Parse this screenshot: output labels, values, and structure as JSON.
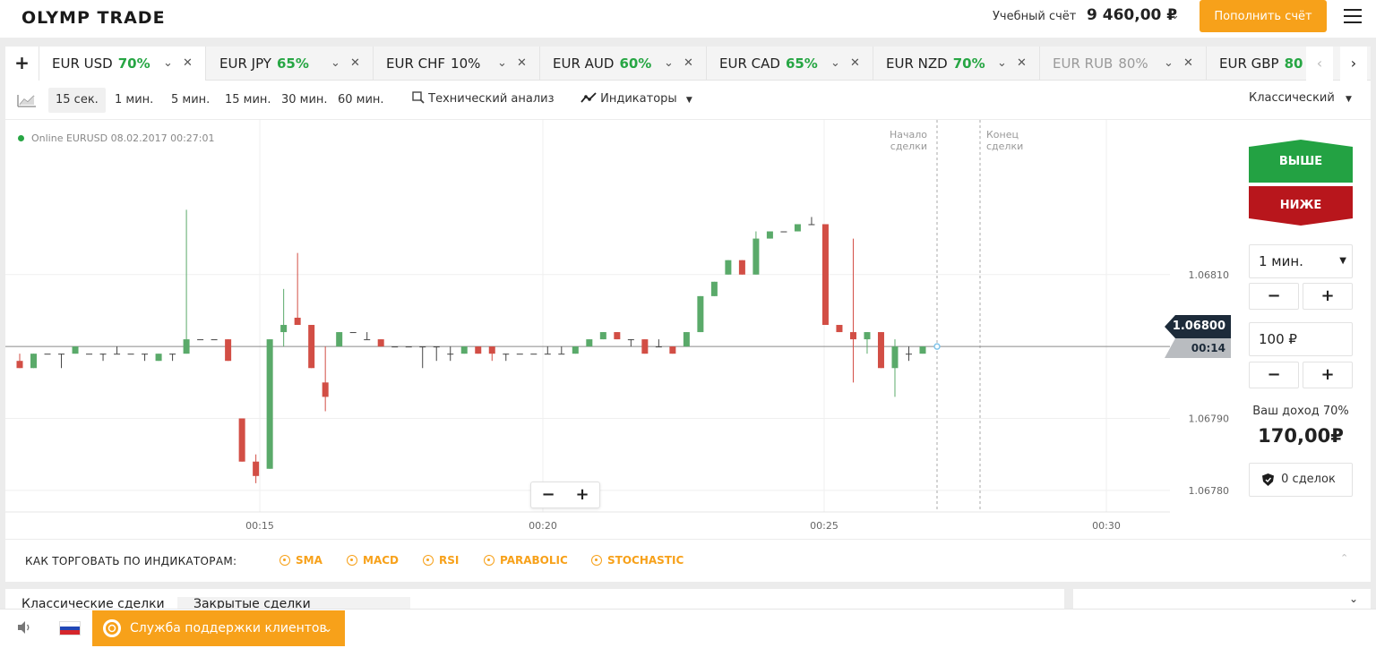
{
  "header": {
    "logo": "OLYMP TRADE",
    "account_label": "Учебный счёт",
    "balance": "9 460,00 ₽",
    "deposit_button": "Пополнить счёт"
  },
  "tabs": [
    {
      "pair": "EUR USD",
      "pct": "70%",
      "active": true
    },
    {
      "pair": "EUR JPY",
      "pct": "65%"
    },
    {
      "pair": "EUR CHF",
      "pct": "10%"
    },
    {
      "pair": "EUR AUD",
      "pct": "60%"
    },
    {
      "pair": "EUR CAD",
      "pct": "65%"
    },
    {
      "pair": "EUR NZD",
      "pct": "70%"
    },
    {
      "pair": "EUR RUB",
      "pct": "80%",
      "disabled": true
    },
    {
      "pair": "EUR GBP",
      "pct": "80"
    }
  ],
  "toolbar": {
    "timeframes": [
      "15 сек.",
      "1 мин.",
      "5 мин.",
      "15 мин.",
      "30 мин.",
      "60 мин."
    ],
    "selected_timeframe": "15 сек.",
    "tech_analysis": "Технический анализ",
    "indicators": "Индикаторы",
    "chart_style": "Классический"
  },
  "chart": {
    "online_label": "Online EURUSD 08.02.2017 00:27:01",
    "deal_start": [
      "Начало",
      "сделки"
    ],
    "deal_end": [
      "Конец",
      "сделки"
    ],
    "current_price": "1.06800",
    "timer": "00:14"
  },
  "chart_data": {
    "type": "candlestick",
    "x_ticks": [
      "00:15",
      "00:20",
      "00:25",
      "00:30"
    ],
    "y_ticks": [
      "1.06810",
      "1.06790",
      "1.06780"
    ],
    "ylim": [
      1.06777,
      1.0683
    ],
    "candles": [
      {
        "o": 1.06798,
        "c": 1.06797,
        "h": 1.06799,
        "l": 1.06797
      },
      {
        "o": 1.06797,
        "c": 1.06799,
        "h": 1.06799,
        "l": 1.06797
      },
      {
        "o": 1.06799,
        "c": 1.06799,
        "h": 1.06799,
        "l": 1.06799
      },
      {
        "o": 1.06799,
        "c": 1.06799,
        "h": 1.06799,
        "l": 1.06797
      },
      {
        "o": 1.06799,
        "c": 1.068,
        "h": 1.068,
        "l": 1.06799
      },
      {
        "o": 1.06799,
        "c": 1.06799,
        "h": 1.06799,
        "l": 1.06799
      },
      {
        "o": 1.06799,
        "c": 1.06799,
        "h": 1.06799,
        "l": 1.06798
      },
      {
        "o": 1.06799,
        "c": 1.06799,
        "h": 1.068,
        "l": 1.06799
      },
      {
        "o": 1.06799,
        "c": 1.06799,
        "h": 1.06799,
        "l": 1.06799
      },
      {
        "o": 1.06799,
        "c": 1.06799,
        "h": 1.06799,
        "l": 1.06798
      },
      {
        "o": 1.06798,
        "c": 1.06799,
        "h": 1.06799,
        "l": 1.06798
      },
      {
        "o": 1.06799,
        "c": 1.06799,
        "h": 1.06799,
        "l": 1.06798
      },
      {
        "o": 1.06799,
        "c": 1.06801,
        "h": 1.06819,
        "l": 1.06799
      },
      {
        "o": 1.06801,
        "c": 1.06801,
        "h": 1.06801,
        "l": 1.06801
      },
      {
        "o": 1.06801,
        "c": 1.06801,
        "h": 1.06801,
        "l": 1.06801
      },
      {
        "o": 1.06801,
        "c": 1.06798,
        "h": 1.06801,
        "l": 1.06798
      },
      {
        "o": 1.0679,
        "c": 1.06784,
        "h": 1.0679,
        "l": 1.06784
      },
      {
        "o": 1.06784,
        "c": 1.06782,
        "h": 1.06785,
        "l": 1.06781
      },
      {
        "o": 1.06783,
        "c": 1.06801,
        "h": 1.06801,
        "l": 1.06783
      },
      {
        "o": 1.06802,
        "c": 1.06803,
        "h": 1.06808,
        "l": 1.068
      },
      {
        "o": 1.06804,
        "c": 1.06803,
        "h": 1.06813,
        "l": 1.06803
      },
      {
        "o": 1.06803,
        "c": 1.06797,
        "h": 1.06803,
        "l": 1.06797
      },
      {
        "o": 1.06795,
        "c": 1.06793,
        "h": 1.068,
        "l": 1.06791
      },
      {
        "o": 1.068,
        "c": 1.06802,
        "h": 1.06802,
        "l": 1.068
      },
      {
        "o": 1.06802,
        "c": 1.06802,
        "h": 1.06802,
        "l": 1.06802
      },
      {
        "o": 1.06801,
        "c": 1.06801,
        "h": 1.06802,
        "l": 1.06801
      },
      {
        "o": 1.06801,
        "c": 1.068,
        "h": 1.06801,
        "l": 1.068
      },
      {
        "o": 1.068,
        "c": 1.068,
        "h": 1.068,
        "l": 1.068
      },
      {
        "o": 1.068,
        "c": 1.068,
        "h": 1.068,
        "l": 1.068
      },
      {
        "o": 1.068,
        "c": 1.068,
        "h": 1.068,
        "l": 1.06797
      },
      {
        "o": 1.068,
        "c": 1.068,
        "h": 1.068,
        "l": 1.06798
      },
      {
        "o": 1.06799,
        "c": 1.06799,
        "h": 1.068,
        "l": 1.06798
      },
      {
        "o": 1.06799,
        "c": 1.068,
        "h": 1.068,
        "l": 1.06799
      },
      {
        "o": 1.068,
        "c": 1.06799,
        "h": 1.068,
        "l": 1.06799
      },
      {
        "o": 1.068,
        "c": 1.06799,
        "h": 1.068,
        "l": 1.06798
      },
      {
        "o": 1.06799,
        "c": 1.06799,
        "h": 1.06799,
        "l": 1.06798
      },
      {
        "o": 1.06799,
        "c": 1.06799,
        "h": 1.06799,
        "l": 1.06799
      },
      {
        "o": 1.06799,
        "c": 1.06799,
        "h": 1.06799,
        "l": 1.06799
      },
      {
        "o": 1.06799,
        "c": 1.06799,
        "h": 1.068,
        "l": 1.06799
      },
      {
        "o": 1.06799,
        "c": 1.06799,
        "h": 1.068,
        "l": 1.06799
      },
      {
        "o": 1.06799,
        "c": 1.068,
        "h": 1.068,
        "l": 1.06799
      },
      {
        "o": 1.068,
        "c": 1.06801,
        "h": 1.06801,
        "l": 1.068
      },
      {
        "o": 1.06801,
        "c": 1.06802,
        "h": 1.06802,
        "l": 1.06801
      },
      {
        "o": 1.06802,
        "c": 1.06801,
        "h": 1.06802,
        "l": 1.06801
      },
      {
        "o": 1.06801,
        "c": 1.06801,
        "h": 1.06801,
        "l": 1.068
      },
      {
        "o": 1.06801,
        "c": 1.06799,
        "h": 1.06801,
        "l": 1.06799
      },
      {
        "o": 1.068,
        "c": 1.068,
        "h": 1.06801,
        "l": 1.068
      },
      {
        "o": 1.068,
        "c": 1.06799,
        "h": 1.068,
        "l": 1.06799
      },
      {
        "o": 1.068,
        "c": 1.06802,
        "h": 1.06802,
        "l": 1.068
      },
      {
        "o": 1.06802,
        "c": 1.06807,
        "h": 1.06807,
        "l": 1.06802
      },
      {
        "o": 1.06807,
        "c": 1.06809,
        "h": 1.06809,
        "l": 1.06807
      },
      {
        "o": 1.0681,
        "c": 1.06812,
        "h": 1.06812,
        "l": 1.0681
      },
      {
        "o": 1.06812,
        "c": 1.0681,
        "h": 1.06812,
        "l": 1.0681
      },
      {
        "o": 1.0681,
        "c": 1.06815,
        "h": 1.06816,
        "l": 1.0681
      },
      {
        "o": 1.06815,
        "c": 1.06816,
        "h": 1.06816,
        "l": 1.06815
      },
      {
        "o": 1.06816,
        "c": 1.06816,
        "h": 1.06816,
        "l": 1.06816
      },
      {
        "o": 1.06816,
        "c": 1.06817,
        "h": 1.06817,
        "l": 1.06816
      },
      {
        "o": 1.06817,
        "c": 1.06817,
        "h": 1.06818,
        "l": 1.06817
      },
      {
        "o": 1.06817,
        "c": 1.06803,
        "h": 1.06817,
        "l": 1.06803
      },
      {
        "o": 1.06803,
        "c": 1.06802,
        "h": 1.06803,
        "l": 1.06802
      },
      {
        "o": 1.06802,
        "c": 1.06801,
        "h": 1.06815,
        "l": 1.06795
      },
      {
        "o": 1.06801,
        "c": 1.06802,
        "h": 1.06802,
        "l": 1.06799
      },
      {
        "o": 1.06802,
        "c": 1.06797,
        "h": 1.06802,
        "l": 1.06797
      },
      {
        "o": 1.06797,
        "c": 1.068,
        "h": 1.06801,
        "l": 1.06793
      },
      {
        "o": 1.06799,
        "c": 1.06799,
        "h": 1.068,
        "l": 1.06798
      },
      {
        "o": 1.06799,
        "c": 1.068,
        "h": 1.068,
        "l": 1.06799
      }
    ]
  },
  "trade": {
    "up_button": "ВЫШЕ",
    "down_button": "НИЖЕ",
    "time_value": "1 мин.",
    "minus": "−",
    "plus": "+",
    "amount": "100 ₽",
    "income_label": "Ваш доход 70%",
    "income_value": "170,00₽",
    "deals": "0 сделок"
  },
  "indicators": {
    "title": "КАК ТОРГОВАТЬ ПО ИНДИКАТОРАМ:",
    "items": [
      "SMA",
      "MACD",
      "RSI",
      "PARABOLIC",
      "STOCHASTIC"
    ]
  },
  "bottom": {
    "tab_classic": "Классические сделки",
    "tab_closed": "Закрытые сделки"
  },
  "footer": {
    "support": "Служба поддержки клиентов"
  },
  "colors": {
    "accent": "#f7a11a",
    "up": "#23a243",
    "down": "#b8161c",
    "candle_up": "#5aaa6a",
    "candle_down": "#d24e45"
  }
}
